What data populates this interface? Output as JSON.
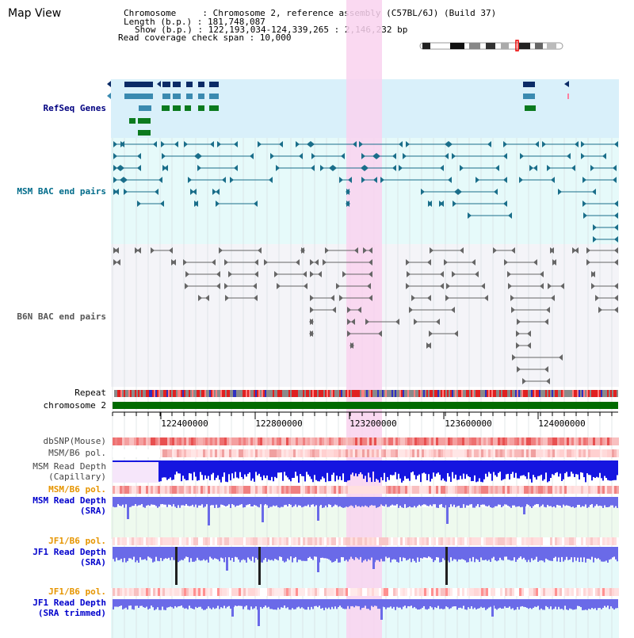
{
  "page": {
    "title": "Map View"
  },
  "header": {
    "chromosome_line": "Chromosome     : Chromosome 2, reference assembly (C57BL/6J) (Build 37)",
    "length_line": "Length (b.p.) : 181,748,087",
    "show_line": "Show (b.p.) : 122,193,034-124,339,265 : 2,146,232 bp",
    "read_span_line": "Read coverage check span : 10,000"
  },
  "tracks": {
    "refseq": "RefSeq Genes",
    "msm_bac": "MSM BAC end pairs",
    "b6n_bac": "B6N BAC end pairs",
    "repeat": "Repeat",
    "chromosome": "chromosome 2",
    "dbsnp": "dbSNP(Mouse)",
    "msm_b6_pol_1": "MSM/B6 pol.",
    "msm_read_depth_cap_1": "MSM Read Depth",
    "msm_read_depth_cap_2": "(Capillary)",
    "msm_b6_pol_2": "MSM/B6 pol.",
    "msm_read_depth_sra_1": "MSM Read Depth",
    "msm_read_depth_sra_2": "(SRA)",
    "jf1_b6_pol_1": "JF1/B6 pol.",
    "jf1_read_depth_sra_1": "JF1 Read Depth",
    "jf1_read_depth_sra_2": "(SRA)",
    "jf1_b6_pol_2": "JF1/B6 pol.",
    "jf1_read_depth_trim_1": "JF1 Read Depth",
    "jf1_read_depth_trim_2": "(SRA trimmed)"
  },
  "axis": {
    "ticks": [
      "122400000",
      "122800000",
      "123200000",
      "123600000",
      "124000000"
    ]
  },
  "colors": {
    "highlight": "#f9d2ef",
    "refseq_bg": "#d9f0fa",
    "msm_bg": "#e6fafa",
    "b6n_bg": "#f4f4f8",
    "chromosome_bar": "#006b00",
    "read_depth_blue": "#1515e0",
    "sra_depth": "#6a6ae8"
  }
}
